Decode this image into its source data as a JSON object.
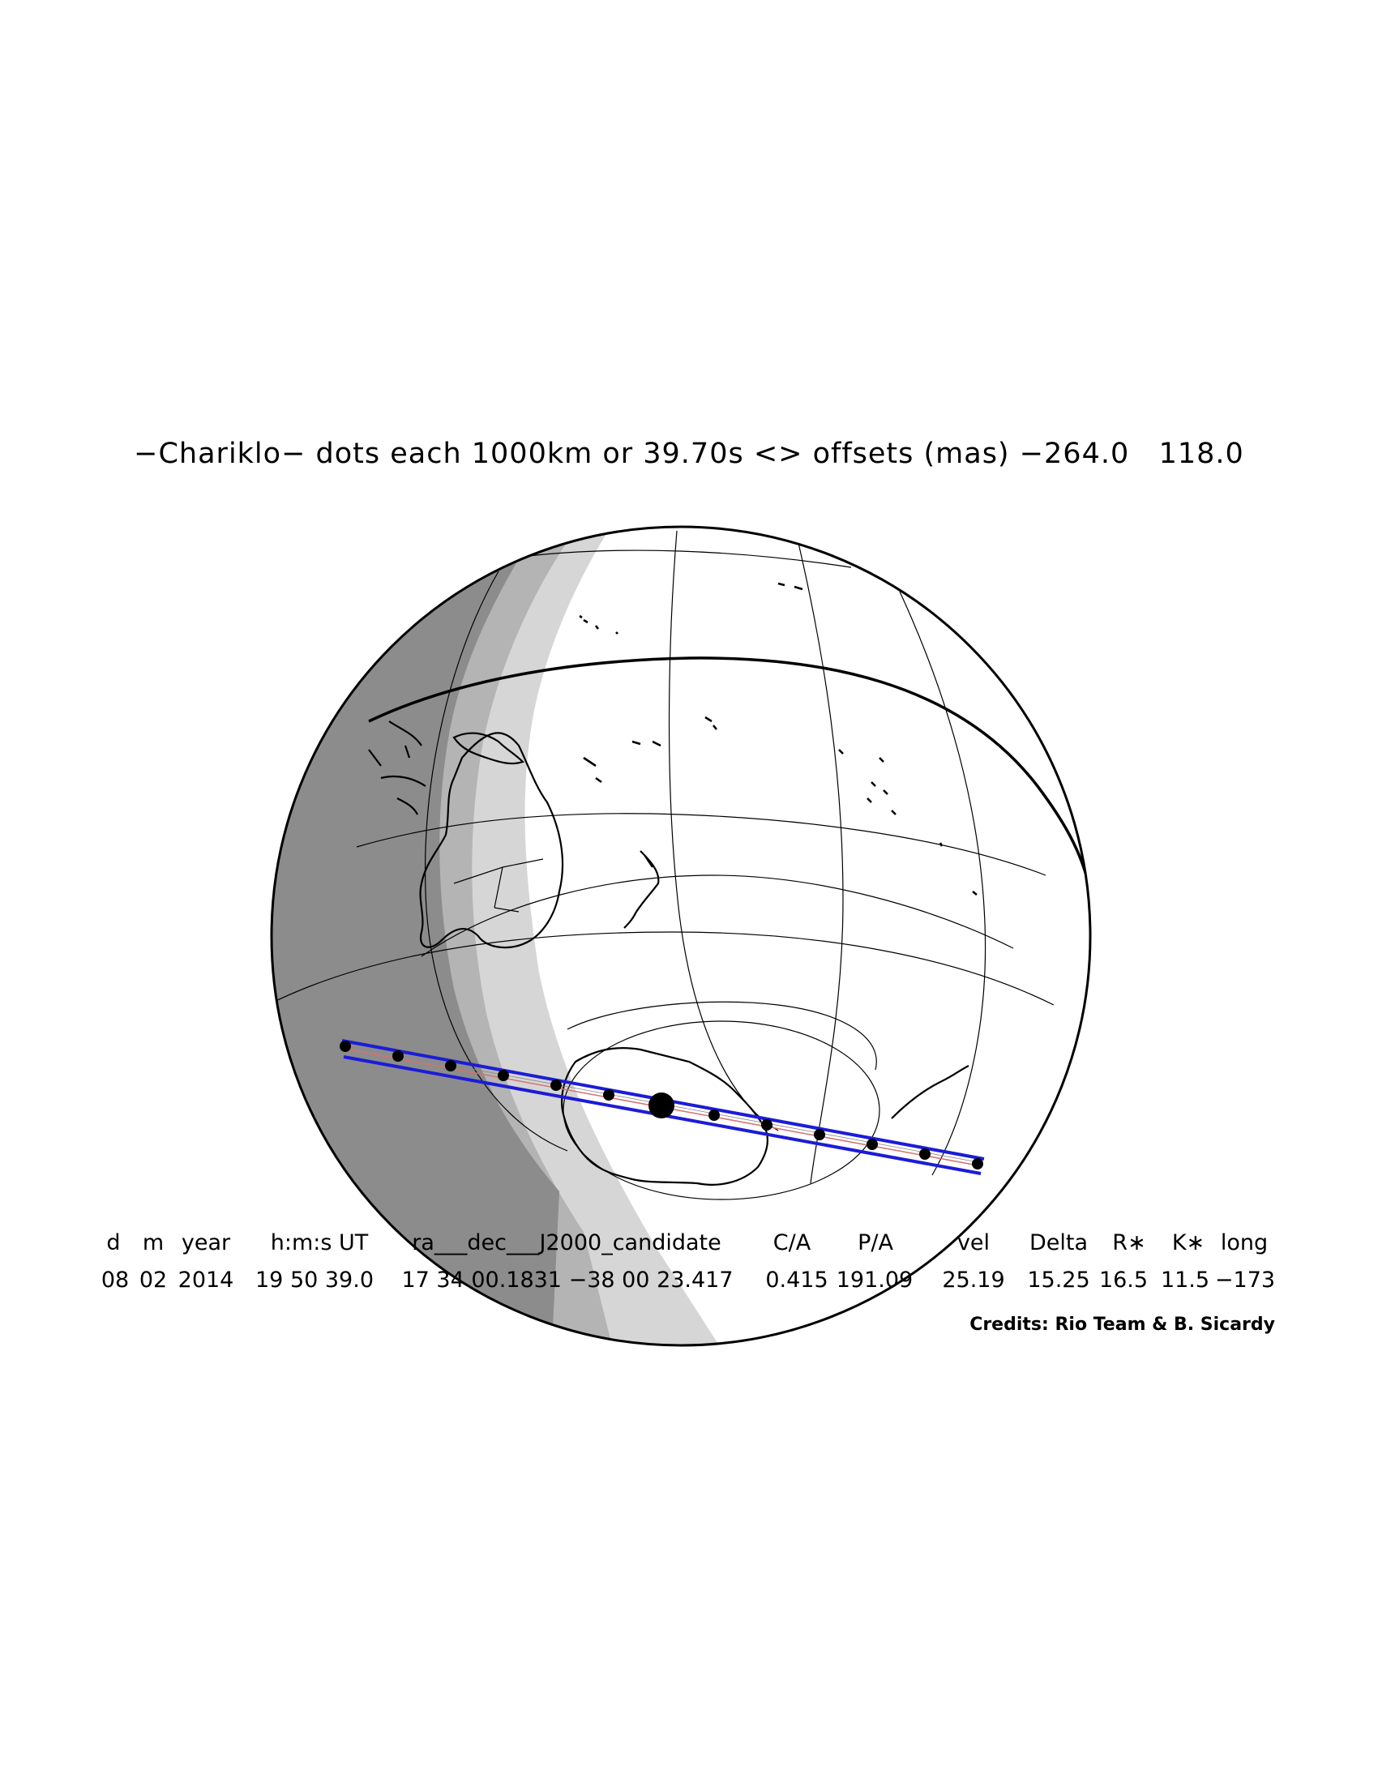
{
  "title": "−Chariklo− dots each 1000km or 39.70s <> offsets (mas) −264.0   118.0",
  "table": {
    "headers": [
      "d",
      "m",
      "year",
      "h:m:s UT",
      "ra___dec___J2000_candidate",
      "C/A",
      "P/A",
      "vel",
      "Delta",
      "R∗",
      "K∗",
      "long"
    ],
    "values": [
      "08",
      "02",
      "2014",
      "19 50 39.0",
      "17 34 00.1831 −38 00 23.417",
      "0.415",
      "191.09",
      "25.19",
      "15.25",
      "16.5",
      "11.5",
      "−173"
    ]
  },
  "credits": "Credits: Rio Team & B. Sicardy",
  "colors": {
    "shadow_track": "#1c1cd6",
    "centerline": "#d87070",
    "night_dark": "#8c8c8c",
    "night_mid": "#b4b4b4",
    "twilight": "#d6d6d6"
  }
}
